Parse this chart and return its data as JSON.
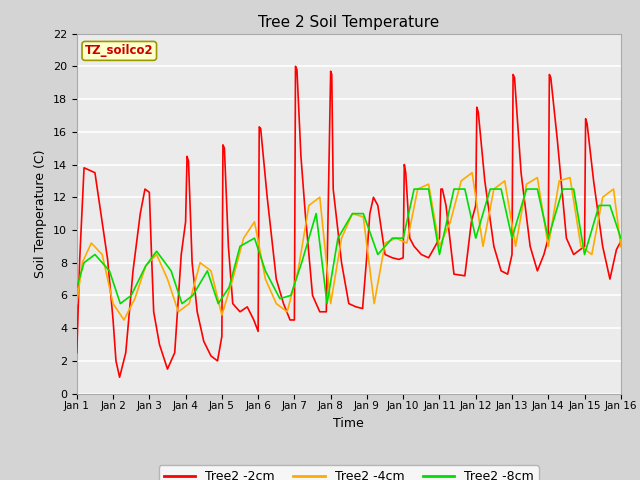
{
  "title": "Tree 2 Soil Temperature",
  "xlabel": "Time",
  "ylabel": "Soil Temperature (C)",
  "annotation": "TZ_soilco2",
  "annotation_color": "#cc0000",
  "annotation_bg": "#ffffcc",
  "annotation_border": "#999900",
  "xlim": [
    0,
    15
  ],
  "ylim": [
    0,
    22
  ],
  "yticks": [
    0,
    2,
    4,
    6,
    8,
    10,
    12,
    14,
    16,
    18,
    20,
    22
  ],
  "xtick_labels": [
    "Jan 1",
    "Jan 2",
    "Jan 3",
    "Jan 4",
    "Jan 5",
    "Jan 6",
    "Jan 7",
    "Jan 8",
    "Jan 9",
    "Jan 10",
    "Jan 11",
    "Jan 12",
    "Jan 13",
    "Jan 14",
    "Jan 15",
    "Jan 16"
  ],
  "fig_bg_color": "#d4d4d4",
  "plot_bg_color": "#ebebeb",
  "grid_color": "#ffffff",
  "line_colors": [
    "#ff0000",
    "#ffaa00",
    "#00dd00"
  ],
  "line_labels": [
    "Tree2 -2cm",
    "Tree2 -4cm",
    "Tree2 -8cm"
  ],
  "line_width": 1.2,
  "t2cm_x": [
    0.0,
    0.08,
    0.2,
    0.5,
    0.85,
    1.0,
    1.08,
    1.18,
    1.35,
    1.55,
    1.75,
    1.88,
    2.0,
    2.06,
    2.12,
    2.28,
    2.5,
    2.7,
    2.88,
    3.0,
    3.04,
    3.08,
    3.18,
    3.32,
    3.5,
    3.7,
    3.88,
    4.0,
    4.03,
    4.07,
    4.18,
    4.3,
    4.5,
    4.7,
    4.88,
    5.0,
    5.03,
    5.07,
    5.25,
    5.5,
    5.7,
    5.88,
    6.0,
    6.03,
    6.07,
    6.18,
    6.3,
    6.5,
    6.7,
    6.88,
    7.0,
    7.03,
    7.07,
    7.3,
    7.5,
    7.7,
    7.88,
    8.0,
    8.08,
    8.18,
    8.3,
    8.5,
    8.7,
    8.88,
    9.0,
    9.03,
    9.07,
    9.18,
    9.3,
    9.5,
    9.7,
    9.88,
    10.0,
    10.04,
    10.08,
    10.18,
    10.4,
    10.7,
    10.88,
    11.0,
    11.03,
    11.07,
    11.25,
    11.5,
    11.7,
    11.88,
    12.0,
    12.03,
    12.07,
    12.25,
    12.5,
    12.7,
    12.88,
    13.0,
    13.03,
    13.07,
    13.25,
    13.5,
    13.7,
    13.88,
    14.0,
    14.03,
    14.07,
    14.25,
    14.5,
    14.7,
    14.88,
    15.0
  ],
  "t2cm_y": [
    2.5,
    8.2,
    13.8,
    13.5,
    8.2,
    4.5,
    2.0,
    1.0,
    2.5,
    7.5,
    11.0,
    12.5,
    12.3,
    8.5,
    5.0,
    3.0,
    1.5,
    2.5,
    8.5,
    10.5,
    14.5,
    14.2,
    8.0,
    5.0,
    3.2,
    2.3,
    2.0,
    3.5,
    15.2,
    15.0,
    9.0,
    5.5,
    5.0,
    5.3,
    4.5,
    3.8,
    16.3,
    16.2,
    12.0,
    7.0,
    5.5,
    4.5,
    4.5,
    20.0,
    19.8,
    14.5,
    11.0,
    6.0,
    5.0,
    5.0,
    19.7,
    19.5,
    12.5,
    8.0,
    5.5,
    5.3,
    5.2,
    8.5,
    11.0,
    12.0,
    11.5,
    8.5,
    8.3,
    8.2,
    8.3,
    14.0,
    13.5,
    9.5,
    9.0,
    8.5,
    8.3,
    9.0,
    9.5,
    12.5,
    12.5,
    11.5,
    7.3,
    7.2,
    10.5,
    11.5,
    17.5,
    17.2,
    13.0,
    9.0,
    7.5,
    7.3,
    8.5,
    19.5,
    19.3,
    13.5,
    9.0,
    7.5,
    8.5,
    9.5,
    19.5,
    19.3,
    15.5,
    9.5,
    8.5,
    8.8,
    9.0,
    16.8,
    16.5,
    13.0,
    9.0,
    7.0,
    8.8,
    9.3
  ],
  "t4cm_x": [
    0.0,
    0.15,
    0.4,
    0.7,
    1.0,
    1.3,
    1.6,
    1.9,
    2.2,
    2.5,
    2.8,
    3.1,
    3.4,
    3.7,
    4.0,
    4.3,
    4.6,
    4.9,
    5.2,
    5.5,
    5.8,
    6.1,
    6.4,
    6.7,
    7.0,
    7.3,
    7.6,
    7.9,
    8.2,
    8.5,
    8.8,
    9.1,
    9.4,
    9.7,
    10.0,
    10.3,
    10.6,
    10.9,
    11.2,
    11.5,
    11.8,
    12.1,
    12.4,
    12.7,
    13.0,
    13.3,
    13.6,
    13.9,
    14.2,
    14.5,
    14.8,
    15.0
  ],
  "t4cm_y": [
    5.5,
    8.0,
    9.2,
    8.5,
    5.5,
    4.5,
    5.8,
    7.8,
    8.5,
    7.0,
    5.0,
    5.5,
    8.0,
    7.5,
    4.8,
    7.0,
    9.5,
    10.5,
    7.0,
    5.5,
    5.0,
    7.5,
    11.5,
    12.0,
    5.5,
    9.5,
    11.0,
    10.8,
    5.5,
    9.2,
    9.5,
    9.2,
    12.5,
    12.8,
    9.0,
    10.5,
    13.0,
    13.5,
    9.0,
    12.5,
    13.0,
    9.0,
    12.8,
    13.2,
    9.0,
    13.0,
    13.2,
    9.0,
    8.5,
    12.0,
    12.5,
    9.0
  ],
  "t8cm_x": [
    0.0,
    0.2,
    0.5,
    0.9,
    1.2,
    1.5,
    1.9,
    2.2,
    2.6,
    2.9,
    3.2,
    3.6,
    3.9,
    4.2,
    4.5,
    4.9,
    5.2,
    5.6,
    5.9,
    6.2,
    6.6,
    6.9,
    7.2,
    7.6,
    7.9,
    8.3,
    8.7,
    9.0,
    9.3,
    9.7,
    10.0,
    10.4,
    10.7,
    11.0,
    11.4,
    11.7,
    12.0,
    12.4,
    12.7,
    13.0,
    13.4,
    13.7,
    14.0,
    14.4,
    14.7,
    15.0
  ],
  "t8cm_y": [
    6.5,
    8.0,
    8.5,
    7.5,
    5.5,
    6.0,
    7.8,
    8.7,
    7.5,
    5.5,
    6.0,
    7.5,
    5.5,
    6.5,
    9.0,
    9.5,
    7.5,
    5.8,
    6.0,
    8.0,
    11.0,
    5.5,
    9.5,
    11.0,
    11.0,
    8.5,
    9.5,
    9.5,
    12.5,
    12.5,
    8.5,
    12.5,
    12.5,
    9.5,
    12.5,
    12.5,
    9.5,
    12.5,
    12.5,
    9.5,
    12.5,
    12.5,
    8.5,
    11.5,
    11.5,
    9.5
  ]
}
